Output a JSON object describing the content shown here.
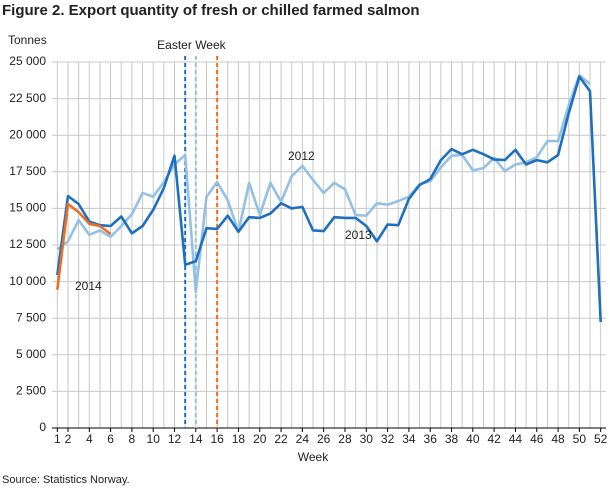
{
  "chart_data": {
    "type": "line",
    "title": "Figure 2. Export quantity of fresh or chilled farmed salmon",
    "y_label": "Tonnes",
    "x_label": "Week",
    "source": "Source: Statistics  Norway.",
    "x": [
      1,
      2,
      3,
      4,
      5,
      6,
      7,
      8,
      9,
      10,
      11,
      12,
      13,
      14,
      15,
      16,
      17,
      18,
      19,
      20,
      21,
      22,
      23,
      24,
      25,
      26,
      27,
      28,
      29,
      30,
      31,
      32,
      33,
      34,
      35,
      36,
      37,
      38,
      39,
      40,
      41,
      42,
      43,
      44,
      45,
      46,
      47,
      48,
      49,
      50,
      51,
      52
    ],
    "series": [
      {
        "name": "2012",
        "color": "#93c1e6",
        "values": [
          12200,
          12750,
          14200,
          13200,
          13500,
          13050,
          13800,
          14600,
          16050,
          15800,
          16800,
          18000,
          18650,
          9300,
          15800,
          16800,
          15550,
          13400,
          16750,
          14550,
          16750,
          15450,
          17200,
          17900,
          16950,
          16050,
          16750,
          16300,
          14550,
          14500,
          15350,
          15250,
          15500,
          15800,
          16650,
          16850,
          17800,
          18600,
          18650,
          17600,
          17750,
          18450,
          17550,
          18000,
          18150,
          18500,
          19600,
          19600,
          22050,
          24100,
          23500,
          null
        ]
      },
      {
        "name": "2013",
        "color": "#1f6fc0",
        "values": [
          10450,
          15850,
          15300,
          14100,
          13850,
          13800,
          14450,
          13300,
          13800,
          14900,
          16400,
          18600,
          11150,
          11400,
          13650,
          13600,
          14500,
          13400,
          14400,
          14350,
          14650,
          15350,
          15000,
          15100,
          13500,
          13450,
          14400,
          14350,
          14350,
          13800,
          12750,
          13900,
          13850,
          15650,
          16600,
          17000,
          18300,
          19050,
          18700,
          19000,
          18700,
          18350,
          18300,
          19000,
          18000,
          18300,
          18150,
          18650,
          21500,
          24000,
          23000,
          7250
        ]
      },
      {
        "name": "2014",
        "color": "#ea6f25",
        "values": [
          9450,
          15300,
          14750,
          13950,
          13800,
          13250,
          null,
          null,
          null,
          null,
          null,
          null,
          null,
          null,
          null,
          null,
          null,
          null,
          null,
          null,
          null,
          null,
          null,
          null,
          null,
          null,
          null,
          null,
          null,
          null,
          null,
          null,
          null,
          null,
          null,
          null,
          null,
          null,
          null,
          null,
          null,
          null,
          null,
          null,
          null,
          null,
          null,
          null,
          null,
          null,
          null,
          null
        ]
      }
    ],
    "markers_label": "Easter Week",
    "markers": [
      {
        "x": 13,
        "color": "#1f6fc0"
      },
      {
        "x": 14,
        "color": "#93c1e6"
      },
      {
        "x": 16,
        "color": "#ea6f25"
      }
    ],
    "xlim": [
      0.5,
      52.5
    ],
    "xticks": [
      1,
      2,
      4,
      6,
      8,
      10,
      12,
      14,
      16,
      18,
      20,
      22,
      24,
      26,
      28,
      30,
      32,
      34,
      36,
      38,
      40,
      42,
      44,
      46,
      48,
      50,
      52
    ],
    "xgrid": [
      1,
      2,
      3,
      4,
      5,
      6,
      7,
      8,
      9,
      10,
      11,
      12,
      13,
      14,
      15,
      16,
      17,
      18,
      19,
      20,
      21,
      22,
      23,
      24,
      25,
      26,
      27,
      28,
      29,
      30,
      31,
      32,
      33,
      34,
      35,
      36,
      37,
      38,
      39,
      40,
      41,
      42,
      43,
      44,
      45,
      46,
      47,
      48,
      49,
      50,
      51,
      52
    ],
    "ylim": [
      0,
      25000
    ],
    "yticks": [
      0,
      {
        "value": 2500,
        "label": "2 500"
      },
      {
        "value": 5000,
        "label": "5 000"
      },
      {
        "value": 7500,
        "label": "7 500"
      },
      {
        "value": 10000,
        "label": "10 000"
      },
      {
        "value": 12500,
        "label": "12 500"
      },
      {
        "value": 15000,
        "label": "15 000"
      },
      {
        "value": 17500,
        "label": "17 500"
      },
      {
        "value": 20000,
        "label": "20 000"
      },
      {
        "value": 22500,
        "label": "22 500"
      },
      {
        "value": 25000,
        "label": "25 000"
      }
    ],
    "grid": true
  }
}
